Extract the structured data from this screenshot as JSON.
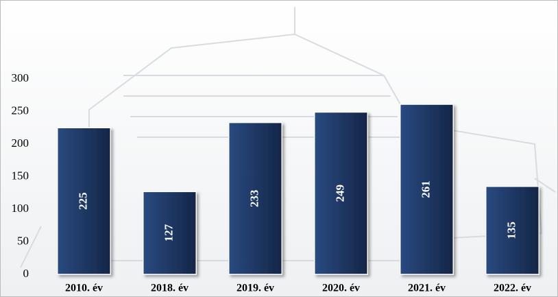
{
  "chart_data": {
    "type": "bar",
    "categories": [
      "2010. év",
      "2018. év",
      "2019. év",
      "2020. év",
      "2021. év",
      "2022. év"
    ],
    "values": [
      225,
      127,
      233,
      249,
      261,
      135
    ],
    "color": "#1f3864",
    "ylim": [
      0,
      300
    ],
    "yticks": [
      0,
      50,
      100,
      150,
      200,
      250,
      300
    ],
    "grid": false
  }
}
